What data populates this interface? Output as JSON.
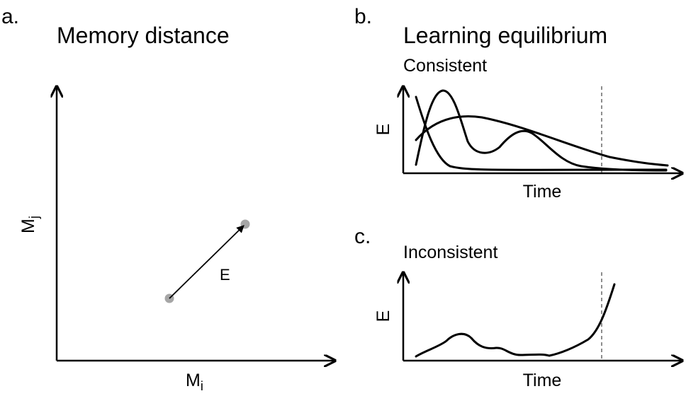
{
  "panel_a": {
    "letter": "a.",
    "title": "Memory distance",
    "x_label": {
      "base": "M",
      "sub": "i"
    },
    "y_label": {
      "base": "M",
      "sub": "j"
    },
    "vector_label": "E"
  },
  "panel_b": {
    "letter": "b.",
    "title": "Learning equilibrium",
    "subtitle": "Consistent",
    "y_label": "E",
    "x_label": "Time"
  },
  "panel_c": {
    "letter": "c.",
    "subtitle": "Inconsistent",
    "y_label": "E",
    "x_label": "Time"
  }
}
